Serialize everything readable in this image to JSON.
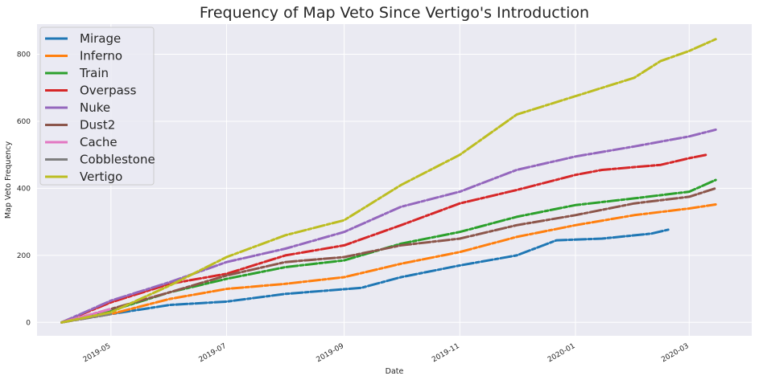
{
  "chart_data": {
    "type": "line",
    "title": "Frequency of Map Veto Since Vertigo's Introduction",
    "xlabel": "Date",
    "ylabel": "Map Veto Frequency",
    "x_range": [
      "2019-03-23",
      "2020-04-03"
    ],
    "ylim": [
      -40,
      890
    ],
    "x_ticks": [
      {
        "date": "2019-05-01",
        "label": "2019-05"
      },
      {
        "date": "2019-07-01",
        "label": "2019-07"
      },
      {
        "date": "2019-09-01",
        "label": "2019-09"
      },
      {
        "date": "2019-11-01",
        "label": "2019-11"
      },
      {
        "date": "2020-01-01",
        "label": "2020-01"
      },
      {
        "date": "2020-03-01",
        "label": "2020-03"
      }
    ],
    "y_ticks": [
      0,
      200,
      400,
      600,
      800
    ],
    "grid": true,
    "legend_position": "upper-left",
    "series": [
      {
        "name": "Mirage",
        "color": "#1f77b4",
        "points": [
          [
            "2019-04-05",
            0
          ],
          [
            "2019-05-01",
            25
          ],
          [
            "2019-06-01",
            52
          ],
          [
            "2019-07-01",
            62
          ],
          [
            "2019-08-01",
            85
          ],
          [
            "2019-09-10",
            103
          ],
          [
            "2019-10-01",
            135
          ],
          [
            "2019-11-01",
            170
          ],
          [
            "2019-12-01",
            200
          ],
          [
            "2019-12-22",
            245
          ],
          [
            "2020-01-15",
            250
          ],
          [
            "2020-02-10",
            265
          ],
          [
            "2020-02-20",
            278
          ]
        ]
      },
      {
        "name": "Inferno",
        "color": "#ff7f0e",
        "points": [
          [
            "2019-04-05",
            0
          ],
          [
            "2019-05-01",
            25
          ],
          [
            "2019-06-01",
            70
          ],
          [
            "2019-07-01",
            100
          ],
          [
            "2019-08-01",
            115
          ],
          [
            "2019-09-01",
            135
          ],
          [
            "2019-10-01",
            175
          ],
          [
            "2019-11-01",
            210
          ],
          [
            "2019-12-01",
            255
          ],
          [
            "2020-01-01",
            290
          ],
          [
            "2020-02-01",
            320
          ],
          [
            "2020-03-01",
            340
          ],
          [
            "2020-03-15",
            352
          ]
        ]
      },
      {
        "name": "Train",
        "color": "#2ca02c",
        "points": [
          [
            "2019-04-05",
            0
          ],
          [
            "2019-05-01",
            35
          ],
          [
            "2019-06-01",
            90
          ],
          [
            "2019-07-01",
            130
          ],
          [
            "2019-08-01",
            165
          ],
          [
            "2019-09-01",
            185
          ],
          [
            "2019-10-01",
            235
          ],
          [
            "2019-11-01",
            270
          ],
          [
            "2019-12-01",
            315
          ],
          [
            "2020-01-01",
            350
          ],
          [
            "2020-02-01",
            370
          ],
          [
            "2020-03-01",
            390
          ],
          [
            "2020-03-15",
            425
          ]
        ]
      },
      {
        "name": "Overpass",
        "color": "#d62728",
        "points": [
          [
            "2019-04-05",
            0
          ],
          [
            "2019-05-01",
            60
          ],
          [
            "2019-06-01",
            115
          ],
          [
            "2019-07-01",
            145
          ],
          [
            "2019-08-01",
            200
          ],
          [
            "2019-09-01",
            230
          ],
          [
            "2019-10-01",
            290
          ],
          [
            "2019-11-01",
            355
          ],
          [
            "2019-12-01",
            395
          ],
          [
            "2020-01-01",
            440
          ],
          [
            "2020-01-15",
            455
          ],
          [
            "2020-02-15",
            470
          ],
          [
            "2020-03-01",
            490
          ],
          [
            "2020-03-10",
            500
          ]
        ]
      },
      {
        "name": "Nuke",
        "color": "#9467bd",
        "points": [
          [
            "2019-04-05",
            0
          ],
          [
            "2019-05-01",
            65
          ],
          [
            "2019-06-01",
            120
          ],
          [
            "2019-07-01",
            180
          ],
          [
            "2019-08-01",
            220
          ],
          [
            "2019-09-01",
            270
          ],
          [
            "2019-10-01",
            345
          ],
          [
            "2019-11-01",
            390
          ],
          [
            "2019-12-01",
            455
          ],
          [
            "2020-01-01",
            495
          ],
          [
            "2020-02-01",
            525
          ],
          [
            "2020-03-01",
            555
          ],
          [
            "2020-03-15",
            575
          ]
        ]
      },
      {
        "name": "Dust2",
        "color": "#8c564b",
        "points": [
          [
            "2019-04-05",
            0
          ],
          [
            "2019-05-01",
            40
          ],
          [
            "2019-06-01",
            90
          ],
          [
            "2019-07-01",
            140
          ],
          [
            "2019-08-01",
            180
          ],
          [
            "2019-09-01",
            195
          ],
          [
            "2019-10-01",
            230
          ],
          [
            "2019-11-01",
            250
          ],
          [
            "2019-12-01",
            290
          ],
          [
            "2020-01-01",
            320
          ],
          [
            "2020-02-01",
            355
          ],
          [
            "2020-03-01",
            375
          ],
          [
            "2020-03-15",
            400
          ]
        ]
      },
      {
        "name": "Cache",
        "color": "#e377c2",
        "points": [
          [
            "2019-04-05",
            0
          ],
          [
            "2019-05-01",
            40
          ]
        ]
      },
      {
        "name": "Cobblestone",
        "color": "#7f7f7f",
        "points": [
          [
            "2019-04-05",
            0
          ],
          [
            "2019-05-01",
            25
          ]
        ]
      },
      {
        "name": "Vertigo",
        "color": "#bcbd22",
        "points": [
          [
            "2019-04-05",
            0
          ],
          [
            "2019-05-01",
            30
          ],
          [
            "2019-06-01",
            110
          ],
          [
            "2019-07-01",
            195
          ],
          [
            "2019-08-01",
            260
          ],
          [
            "2019-09-01",
            305
          ],
          [
            "2019-10-01",
            410
          ],
          [
            "2019-11-01",
            500
          ],
          [
            "2019-12-01",
            620
          ],
          [
            "2020-01-01",
            675
          ],
          [
            "2020-02-01",
            730
          ],
          [
            "2020-02-15",
            780
          ],
          [
            "2020-03-01",
            810
          ],
          [
            "2020-03-15",
            845
          ]
        ]
      }
    ]
  }
}
